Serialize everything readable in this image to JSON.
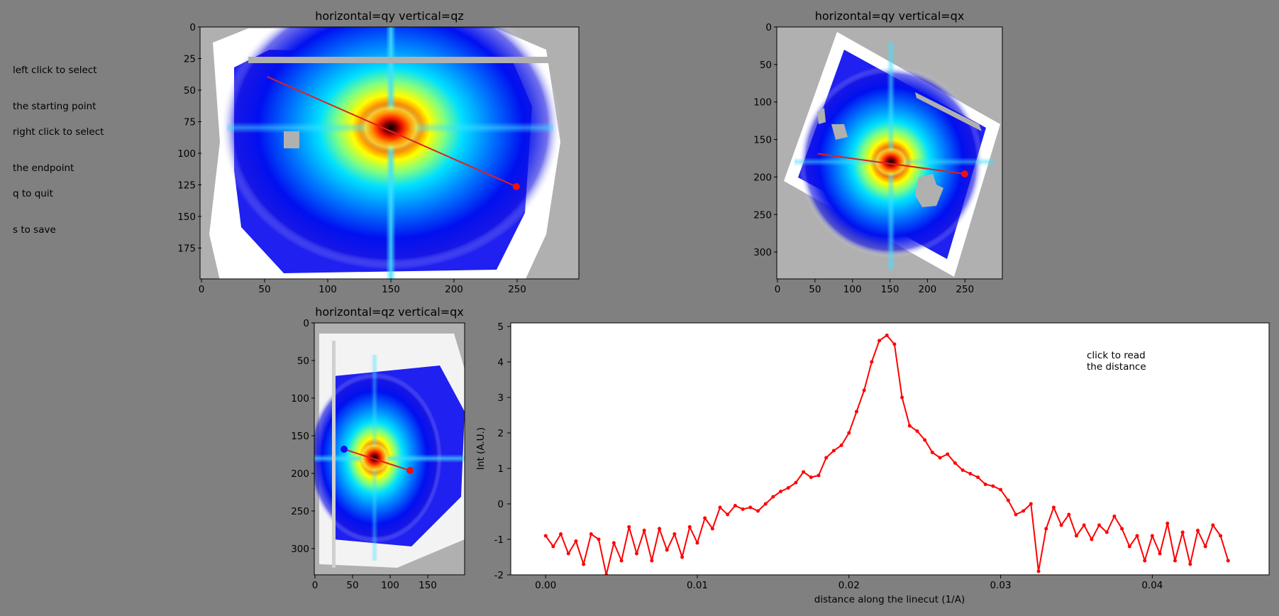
{
  "instructions": {
    "start_line1": "left click to select",
    "start_line2": "the starting point",
    "end_line1": "right click to select",
    "end_line2": "the endpoint",
    "quit": "q to quit",
    "save": "s to save"
  },
  "colors": {
    "background": "#808080",
    "masked": "#b0b0b0",
    "line": "#e02020",
    "start_marker": "#1010ee",
    "end_marker": "#ee1010",
    "profile": "#ff0000"
  },
  "panels": {
    "qy_qz": {
      "title": "horizontal=qy  vertical=qz",
      "x_ticks": [
        "0",
        "50",
        "100",
        "150",
        "200",
        "250"
      ],
      "y_ticks": [
        "0",
        "25",
        "50",
        "75",
        "100",
        "125",
        "150",
        "175"
      ],
      "line": {
        "start": [
          50,
          38
        ],
        "end": [
          250,
          126
        ]
      }
    },
    "qy_qx": {
      "title": "horizontal=qy  vertical=qx",
      "x_ticks": [
        "0",
        "50",
        "100",
        "150",
        "200",
        "250"
      ],
      "y_ticks": [
        "0",
        "50",
        "100",
        "150",
        "200",
        "250",
        "300"
      ],
      "line": {
        "start": [
          50,
          168
        ],
        "end": [
          250,
          196
        ]
      }
    },
    "qz_qx": {
      "title": "horizontal=qz  vertical=qx",
      "x_ticks": [
        "0",
        "50",
        "100",
        "150"
      ],
      "y_ticks": [
        "0",
        "50",
        "100",
        "150",
        "200",
        "250",
        "300"
      ],
      "line": {
        "start": [
          38,
          168
        ],
        "end": [
          126,
          196
        ]
      }
    }
  },
  "chart_data": {
    "type": "line",
    "xlabel": "distance along the linecut (1/A)",
    "ylabel": "Int (A.U.)",
    "annotation_line1": "click to read",
    "annotation_line2": "the distance",
    "x_ticks": [
      "0.00",
      "0.01",
      "0.02",
      "0.03",
      "0.04"
    ],
    "y_ticks": [
      "-2",
      "-1",
      "0",
      "1",
      "2",
      "3",
      "4",
      "5"
    ],
    "xlim": [
      -0.0023,
      0.0477
    ],
    "ylim": [
      -2,
      5.1
    ],
    "series": [
      {
        "x": [
          0.0,
          0.0005,
          0.001,
          0.0015,
          0.002,
          0.0025,
          0.003,
          0.0035,
          0.004,
          0.0045,
          0.005,
          0.0055,
          0.006,
          0.0065,
          0.007,
          0.0075,
          0.008,
          0.0085,
          0.009,
          0.0095,
          0.01,
          0.0105,
          0.011,
          0.0115,
          0.012,
          0.0125,
          0.013,
          0.0135,
          0.014,
          0.0145,
          0.015,
          0.0155,
          0.016,
          0.0165,
          0.017,
          0.0175,
          0.018,
          0.0185,
          0.019,
          0.0195,
          0.02,
          0.0205,
          0.021,
          0.0215,
          0.022,
          0.0225,
          0.023,
          0.0235,
          0.024,
          0.0245,
          0.025,
          0.0255,
          0.026,
          0.0265,
          0.027,
          0.0275,
          0.028,
          0.0285,
          0.029,
          0.0295,
          0.03,
          0.0305,
          0.031,
          0.0315,
          0.032,
          0.0325,
          0.033,
          0.0335,
          0.034,
          0.0345,
          0.035,
          0.0355,
          0.036,
          0.0365,
          0.037,
          0.0375,
          0.038,
          0.0385,
          0.039,
          0.0395,
          0.04,
          0.0405,
          0.041,
          0.0415,
          0.042,
          0.0425,
          0.043,
          0.0435,
          0.044,
          0.0445,
          0.045
        ],
        "y": [
          -0.9,
          -1.2,
          -0.85,
          -1.4,
          -1.05,
          -1.7,
          -0.85,
          -1.0,
          -2.0,
          -1.1,
          -1.6,
          -0.65,
          -1.4,
          -0.75,
          -1.6,
          -0.7,
          -1.3,
          -0.85,
          -1.5,
          -0.65,
          -1.1,
          -0.4,
          -0.7,
          -0.1,
          -0.3,
          -0.05,
          -0.15,
          -0.1,
          -0.2,
          0.0,
          0.2,
          0.35,
          0.45,
          0.6,
          0.9,
          0.75,
          0.8,
          1.3,
          1.5,
          1.65,
          2.0,
          2.6,
          3.2,
          4.0,
          4.6,
          4.75,
          4.5,
          3.0,
          2.2,
          2.05,
          1.8,
          1.45,
          1.3,
          1.4,
          1.15,
          0.95,
          0.85,
          0.75,
          0.55,
          0.5,
          0.4,
          0.1,
          -0.3,
          -0.2,
          0.0,
          -1.9,
          -0.7,
          -0.1,
          -0.6,
          -0.3,
          -0.9,
          -0.6,
          -1.0,
          -0.6,
          -0.8,
          -0.35,
          -0.7,
          -1.2,
          -0.9,
          -1.6,
          -0.9,
          -1.4,
          -0.55,
          -1.6,
          -0.8,
          -1.7,
          -0.75,
          -1.2,
          -0.6,
          -0.9,
          -1.6
        ]
      }
    ]
  }
}
